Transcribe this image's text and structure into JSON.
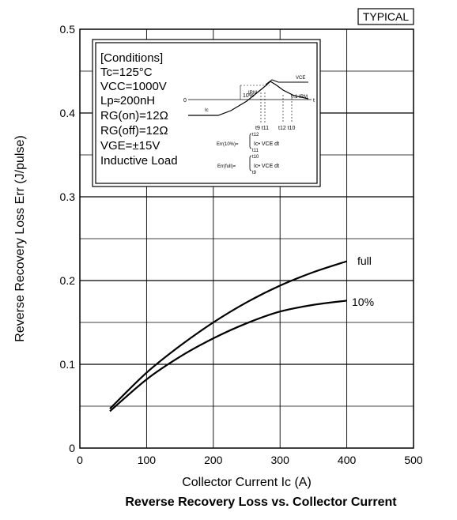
{
  "chart_data": {
    "type": "line",
    "title": "Reverse Recovery Loss vs. Collector Current",
    "badge": "TYPICAL",
    "xlabel": "Collector Current Ic (A)",
    "ylabel": "Reverse Recovery Loss Err (J/pulse)",
    "xlim": [
      0,
      500
    ],
    "ylim": [
      0,
      0.5
    ],
    "x_ticks": [
      "0",
      "100",
      "200",
      "300",
      "400",
      "500"
    ],
    "y_ticks": [
      "0",
      "0.1",
      "0.2",
      "0.3",
      "0.4",
      "0.5"
    ],
    "grid": true,
    "series": [
      {
        "name": "full",
        "x": [
          45,
          100,
          150,
          200,
          250,
          300,
          350,
          400
        ],
        "y": [
          0.047,
          0.09,
          0.122,
          0.15,
          0.174,
          0.194,
          0.21,
          0.223
        ]
      },
      {
        "name": "10%",
        "x": [
          45,
          100,
          150,
          200,
          250,
          300,
          350,
          400
        ],
        "y": [
          0.044,
          0.082,
          0.109,
          0.131,
          0.149,
          0.163,
          0.171,
          0.176
        ]
      }
    ],
    "conditions": {
      "heading": "[Conditions]",
      "lines": [
        "Tc=125°C",
        "VCC=1000V",
        "Lp≈200nH",
        "RG(on)=12Ω",
        "RG(off)=12Ω",
        "VGE=±15V",
        "Inductive Load"
      ]
    },
    "waveform": {
      "irm": "IRM",
      "pct10": "10%",
      "pct01": "0.1 IRM",
      "zero": "0",
      "t": "t",
      "ic": "Ic",
      "vce": "VCE",
      "t9t11": "t9 t11",
      "t12t10": "t12 t10",
      "err10_label": "Err(10%)=",
      "err10_upper": "t12",
      "err10_lower": "t11",
      "err10_integrand": "Ic• VCE dt",
      "errfull_label": "Err(full)=",
      "errfull_upper": "t10",
      "errfull_lower": "t9",
      "errfull_integrand": "Ic• VCE dt"
    }
  }
}
